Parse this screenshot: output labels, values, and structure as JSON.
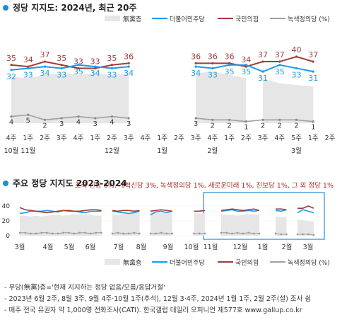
{
  "colors": {
    "noparty": "#e6e6e6",
    "dem": "#1a9be6",
    "ppp": "#a23c3c",
    "green": "#a0a0a0",
    "accent": "#1a8fd8",
    "others": "#b0302a"
  },
  "section1": {
    "title": "정당 지지도: 2024년, 최근 20주"
  },
  "section2": {
    "title": "주요 정당 지지도 2023-2024"
  },
  "legend": {
    "noparty": "無黨층",
    "dem": "더불어민주당",
    "ppp": "국민의힘",
    "green": "녹색정의당 (%)",
    "green2": "녹색정의당 (%)"
  },
  "others_note": "- 조국 신당 6%, 개혁신당 3%, 녹색정의당 1%, 새로운미래 1%, 진보당 1%, 그 외 정당 1%",
  "footnotes": [
    "- 무당(無黨)층='현재 지지하는 정당 없음/모름/응답거절'",
    "- 2023년 6월 2주, 8월 3주, 9월 4주·10월 1주(추석), 12월 3·4주, 2024년 1월 1주, 2월 2주(설) 조사 쉼",
    "- 매주 전국 유권자 약 1,000명 전화조사(CATI). 한국갤럽 데일리 오피니언 제577호 www.gallup.co.kr"
  ],
  "chart_data": [
    {
      "type": "line",
      "title": "정당 지지도: 2024년, 최근 20주",
      "x": [
        "4주",
        "1주",
        "2주",
        "3주",
        "4주",
        "1주",
        "2주",
        "3주",
        "4주",
        "1주",
        "2주",
        "3주",
        "4주",
        "1주",
        "2주",
        "3주",
        "4주",
        "5주",
        "1주",
        "2주"
      ],
      "month_labels": [
        {
          "at": 0.5,
          "text": "10월 11월"
        },
        {
          "at": 6,
          "text": "12월"
        },
        {
          "at": 9,
          "text": "1월"
        },
        {
          "at": 12,
          "text": "2월"
        },
        {
          "at": 17,
          "text": "3월"
        }
      ],
      "ylim": [
        0,
        45
      ],
      "series": [
        {
          "name": "국민의힘",
          "values": [
            35,
            34,
            37,
            35,
            33,
            33,
            35,
            36,
            null,
            null,
            null,
            36,
            36,
            36,
            34,
            37,
            37,
            40,
            37,
            null
          ]
        },
        {
          "name": "더불어민주당",
          "values": [
            32,
            33,
            34,
            33,
            35,
            34,
            33,
            34,
            null,
            null,
            null,
            34,
            33,
            35,
            35,
            31,
            35,
            33,
            31,
            null
          ]
        },
        {
          "name": "녹색정의당 (%)",
          "values": [
            4,
            5,
            2,
            3,
            4,
            3,
            4,
            3,
            null,
            null,
            null,
            3,
            2,
            2,
            1,
            2,
            2,
            2,
            1,
            null
          ]
        },
        {
          "name": "無黨층",
          "values": [
            null,
            null,
            null,
            null,
            null,
            null,
            null,
            null,
            null,
            null,
            null,
            null,
            null,
            null,
            null,
            null,
            null,
            null,
            null,
            null
          ]
        }
      ]
    },
    {
      "type": "line",
      "title": "주요 정당 지지도 2023-2024",
      "x_ticks": [
        "3월",
        "4월",
        "5월",
        "6월",
        "7월",
        "8월",
        "9월",
        "10월",
        "11월",
        "12월",
        "1월",
        "2월",
        "3월"
      ],
      "yticks": [
        0,
        20,
        40
      ],
      "ylim": [
        0,
        45
      ],
      "series": [
        {
          "name": "국민의힘",
          "values": [
            38,
            35,
            34,
            33,
            32,
            31,
            32,
            33,
            34,
            34,
            33,
            33,
            34,
            35,
            35,
            34,
            null,
            34,
            33,
            34,
            34,
            33,
            34,
            null,
            33,
            34,
            35,
            34,
            33,
            null,
            null,
            null,
            33,
            33,
            34,
            null,
            null,
            34,
            35,
            36,
            35,
            34,
            35,
            36,
            34,
            null,
            null,
            36,
            36,
            35,
            null,
            37,
            37,
            40,
            37
          ]
        },
        {
          "name": "더불어민주당",
          "values": [
            30,
            31,
            33,
            33,
            33,
            34,
            33,
            32,
            34,
            33,
            33,
            32,
            31,
            33,
            33,
            33,
            null,
            33,
            32,
            31,
            30,
            31,
            33,
            null,
            28,
            32,
            33,
            31,
            33,
            null,
            null,
            null,
            33,
            33,
            34,
            null,
            null,
            33,
            34,
            35,
            33,
            33,
            34,
            33,
            34,
            null,
            null,
            34,
            33,
            35,
            null,
            31,
            35,
            33,
            31
          ]
        },
        {
          "name": "녹색정의당 (%)",
          "values": [
            4,
            4,
            3,
            3,
            4,
            4,
            3,
            3,
            4,
            4,
            3,
            4,
            4,
            3,
            4,
            4,
            null,
            3,
            4,
            3,
            3,
            4,
            3,
            null,
            3,
            3,
            4,
            3,
            3,
            null,
            null,
            null,
            3,
            3,
            3,
            null,
            null,
            4,
            4,
            3,
            4,
            3,
            4,
            3,
            3,
            null,
            null,
            3,
            2,
            2,
            null,
            2,
            2,
            2,
            1
          ]
        },
        {
          "name": "無黨층",
          "values": [
            27,
            27,
            26,
            27,
            26,
            27,
            28,
            28,
            27,
            28,
            29,
            28,
            29,
            28,
            27,
            27,
            null,
            29,
            28,
            30,
            29,
            31,
            31,
            null,
            33,
            30,
            31,
            30,
            31,
            null,
            null,
            null,
            31,
            30,
            30,
            null,
            null,
            29,
            28,
            28,
            27,
            28,
            29,
            28,
            29,
            null,
            null,
            26,
            25,
            26,
            null,
            22,
            21,
            20,
            19
          ]
        }
      ]
    }
  ]
}
